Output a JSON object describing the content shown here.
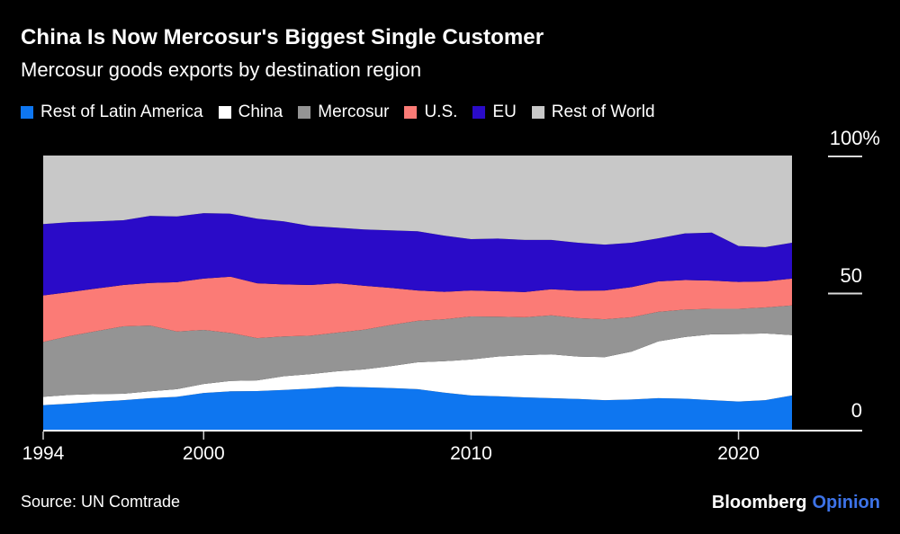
{
  "header": {
    "title": "China Is Now Mercosur's Biggest Single Customer",
    "subtitle": "Mercosur goods exports by destination region"
  },
  "legend": [
    {
      "label": "Rest of Latin America",
      "color": "#0E76F0"
    },
    {
      "label": "China",
      "color": "#FFFFFF"
    },
    {
      "label": "Mercosur",
      "color": "#949494"
    },
    {
      "label": "U.S.",
      "color": "#FB7B76"
    },
    {
      "label": "EU",
      "color": "#2A0BC8"
    },
    {
      "label": "Rest of World",
      "color": "#C8C8C8"
    }
  ],
  "axes": {
    "y_ticks": [
      "100%",
      "50",
      "0"
    ],
    "x_ticks": [
      "1994",
      "2000",
      "2010",
      "2020"
    ]
  },
  "footer": {
    "source": "Source: UN Comtrade",
    "brand": "Bloomberg",
    "brand_suffix": "Opinion",
    "brand_suffix_color": "#3D73E8"
  },
  "chart_data": {
    "type": "area",
    "stacked": true,
    "unit": "percent of total exports",
    "title": "Mercosur goods exports by destination region",
    "ylim": [
      0,
      100
    ],
    "grid": false,
    "legend_position": "top",
    "x_tick_years": [
      1994,
      2000,
      2010,
      2020
    ],
    "y_tick_values": [
      100,
      50,
      0
    ],
    "x": [
      1994,
      1995,
      1996,
      1997,
      1998,
      1999,
      2000,
      2001,
      2002,
      2003,
      2004,
      2005,
      2006,
      2007,
      2008,
      2009,
      2010,
      2011,
      2012,
      2013,
      2014,
      2015,
      2016,
      2017,
      2018,
      2019,
      2020,
      2021,
      2022
    ],
    "series": [
      {
        "name": "Rest of Latin America",
        "color": "#0E76F0",
        "values": [
          9.0,
          9.5,
          10.2,
          10.8,
          11.5,
          12.0,
          13.4,
          14.0,
          14.1,
          14.5,
          15.0,
          15.7,
          15.5,
          15.2,
          14.8,
          13.5,
          12.5,
          12.2,
          11.8,
          11.5,
          11.2,
          10.8,
          11.0,
          11.5,
          11.3,
          10.8,
          10.3,
          10.8,
          12.5
        ]
      },
      {
        "name": "China",
        "color": "#FFFFFF",
        "values": [
          3.0,
          3.2,
          2.8,
          2.3,
          2.5,
          2.8,
          3.3,
          3.8,
          3.9,
          5.0,
          5.3,
          5.6,
          6.5,
          8.0,
          9.8,
          11.5,
          13.1,
          14.5,
          15.4,
          16.0,
          15.5,
          15.7,
          17.5,
          20.7,
          22.5,
          24.0,
          24.6,
          24.3,
          22.0
        ]
      },
      {
        "name": "Mercosur",
        "color": "#949494",
        "values": [
          20.0,
          21.5,
          23.0,
          24.6,
          24.0,
          21.0,
          19.7,
          17.5,
          15.4,
          14.5,
          14.0,
          14.1,
          14.5,
          15.0,
          15.1,
          15.3,
          15.7,
          14.5,
          13.8,
          14.2,
          14.0,
          13.8,
          12.5,
          10.8,
          10.0,
          9.3,
          9.2,
          9.5,
          10.8
        ]
      },
      {
        "name": "U.S.",
        "color": "#FB7B76",
        "values": [
          17.0,
          16.0,
          15.5,
          15.1,
          15.5,
          18.0,
          18.7,
          20.5,
          20.0,
          19.0,
          18.5,
          18.0,
          16.0,
          13.5,
          11.1,
          10.0,
          9.5,
          9.3,
          9.2,
          9.5,
          10.0,
          10.5,
          11.0,
          11.1,
          10.8,
          10.3,
          9.8,
          9.5,
          9.8
        ]
      },
      {
        "name": "EU",
        "color": "#2A0BC8",
        "values": [
          26.0,
          25.5,
          24.5,
          23.6,
          24.5,
          24.0,
          23.9,
          23.0,
          23.6,
          23.0,
          21.5,
          20.3,
          20.5,
          21.0,
          21.6,
          20.5,
          18.7,
          19.2,
          19.0,
          18.0,
          17.5,
          16.7,
          16.2,
          15.7,
          17.0,
          17.5,
          13.1,
          12.5,
          13.1
        ]
      },
      {
        "name": "Rest of World",
        "color": "#C8C8C8",
        "values": [
          25.0,
          24.3,
          24.0,
          23.6,
          22.0,
          22.2,
          21.0,
          21.2,
          23.0,
          24.0,
          25.7,
          26.3,
          27.0,
          27.3,
          27.6,
          29.2,
          30.5,
          30.3,
          30.8,
          30.8,
          31.8,
          32.5,
          31.8,
          30.2,
          28.4,
          28.1,
          33.0,
          33.4,
          31.8
        ]
      }
    ]
  }
}
